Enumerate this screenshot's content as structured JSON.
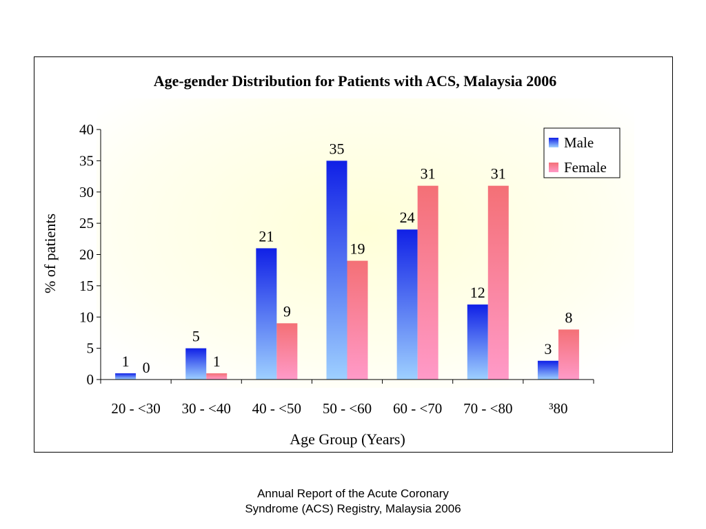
{
  "chart_data": {
    "type": "bar",
    "title": "Age-gender Distribution for Patients with ACS, Malaysia 2006",
    "xlabel": "Age Group (Years)",
    "ylabel": "% of patients",
    "categories": [
      "20 - <30",
      "30 - <40",
      "40 - <50",
      "50 - <60",
      "60 - <70",
      "70 - <80",
      "³80"
    ],
    "series": [
      {
        "name": "Male",
        "values": [
          1,
          5,
          21,
          35,
          24,
          12,
          3
        ],
        "color": "#1a2ee0"
      },
      {
        "name": "Female",
        "values": [
          0,
          1,
          9,
          19,
          31,
          31,
          8
        ],
        "color": "#f2747e"
      }
    ],
    "ylim": [
      0,
      40
    ],
    "yticks": [
      0,
      5,
      10,
      15,
      20,
      25,
      30,
      35,
      40
    ],
    "grid": false,
    "legend_position": "top-right"
  },
  "footer": {
    "line1": "Annual Report of the Acute Coronary",
    "line2": "Syndrome (ACS) Registry, Malaysia 2006"
  }
}
